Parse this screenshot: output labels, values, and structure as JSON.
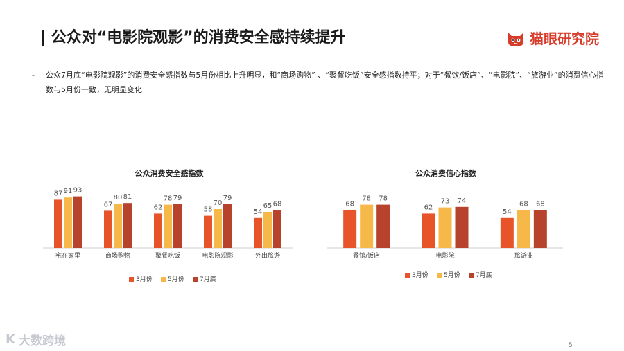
{
  "header": {
    "title": "| 公众对“电影院观影”的消费安全感持续提升",
    "brand": "猫眼研究院"
  },
  "bullet": {
    "dash": "-",
    "text": "公众7月底“电影院观影”的消费安全感指数与5月份相比上升明显，和“商场购物” 、“聚餐吃饭”安全感指数持平；对于“餐饮/饭店”、“电影院”、“旅游业”的消费信心指数与5月份一致，无明显变化"
  },
  "colors": {
    "march": "#e8542a",
    "may": "#f7b84a",
    "july": "#b8432c",
    "brand": "#d93b2b"
  },
  "chart_data": [
    {
      "type": "bar",
      "title": "公众消费安全感指数",
      "categories": [
        "宅在家里",
        "商场购物",
        "聚餐吃饭",
        "电影院观影",
        "外出旅游"
      ],
      "series": [
        {
          "name": "3月份",
          "values": [
            87,
            67,
            62,
            58,
            54
          ]
        },
        {
          "name": "5月份",
          "values": [
            91,
            80,
            78,
            70,
            65
          ]
        },
        {
          "name": "7月底",
          "values": [
            93,
            81,
            79,
            79,
            68
          ]
        }
      ],
      "legend": "bottom",
      "ylim": [
        0,
        100
      ]
    },
    {
      "type": "bar",
      "title": "公众消费信心指数",
      "categories": [
        "餐馆/饭店",
        "电影院",
        "旅游业"
      ],
      "series": [
        {
          "name": "3月份",
          "values": [
            68,
            62,
            54
          ]
        },
        {
          "name": "5月份",
          "values": [
            78,
            73,
            68
          ]
        },
        {
          "name": "7月底",
          "values": [
            78,
            74,
            68
          ]
        }
      ],
      "legend": "bottom",
      "ylim": [
        0,
        100
      ]
    }
  ],
  "watermark": {
    "mark": "K",
    "text": "大数跨境"
  },
  "page_number": "5"
}
